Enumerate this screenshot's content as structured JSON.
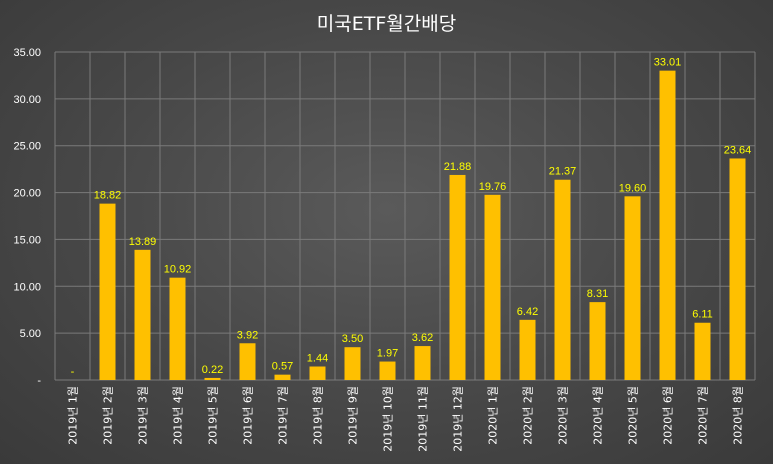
{
  "chart_data": {
    "type": "bar",
    "title": "미국ETF월간배당",
    "categories": [
      "2019년 1월",
      "2019년 2월",
      "2019년 3월",
      "2019년 4월",
      "2019년 5월",
      "2019년 6월",
      "2019년 7월",
      "2019년 8월",
      "2019년 9월",
      "2019년 10월",
      "2019년 11월",
      "2019년 12월",
      "2020년 1월",
      "2020년 2월",
      "2020년 3월",
      "2020년 4월",
      "2020년 5월",
      "2020년 6월",
      "2020년 7월",
      "2020년 8월"
    ],
    "values": [
      0,
      18.82,
      13.89,
      10.92,
      0.22,
      3.92,
      0.57,
      1.44,
      3.5,
      1.97,
      3.62,
      21.88,
      19.76,
      6.42,
      21.37,
      8.31,
      19.6,
      33.01,
      6.11,
      23.64
    ],
    "data_labels": [
      "-",
      "18.82",
      "13.89",
      "10.92",
      "0.22",
      "3.92",
      "0.57",
      "1.44",
      "3.50",
      "1.97",
      "3.62",
      "21.88",
      "19.76",
      "6.42",
      "21.37",
      "8.31",
      "19.60",
      "33.01",
      "6.11",
      "23.64"
    ],
    "y_tick_labels": [
      "-",
      "5.00",
      "10.00",
      "15.00",
      "20.00",
      "25.00",
      "30.00",
      "35.00"
    ],
    "ylim": [
      0,
      35
    ],
    "xlabel": "",
    "ylabel": "",
    "grid": true,
    "bar_color": "#FFC000",
    "label_color": "#FFFF00",
    "grid_color": "#7a7a7a",
    "text_color": "#ffffff"
  }
}
